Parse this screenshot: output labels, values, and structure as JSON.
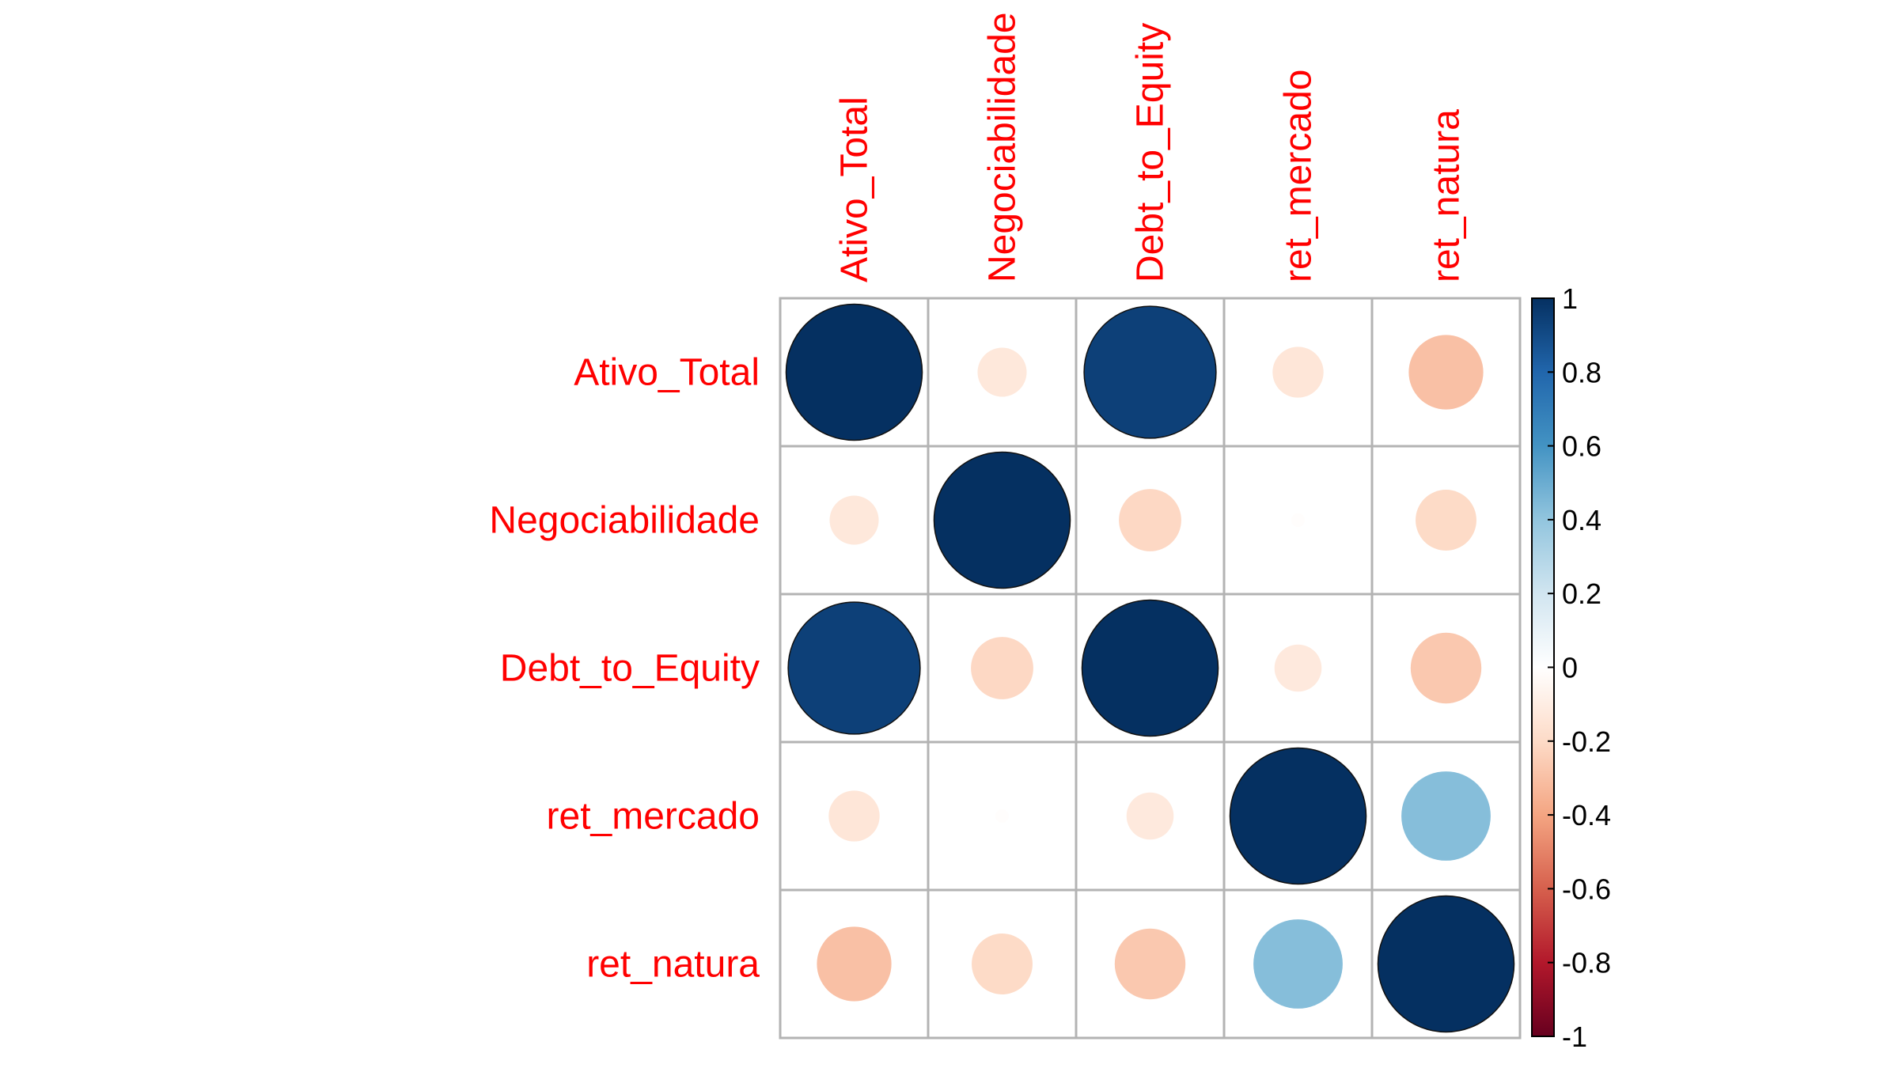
{
  "chart_data": {
    "type": "heatmap",
    "method": "circle",
    "variables": [
      "Ativo_Total",
      "Negociabilidade",
      "Debt_to_Equity",
      "ret_mercado",
      "ret_natura"
    ],
    "matrix": [
      [
        1.0,
        -0.13,
        0.94,
        -0.14,
        -0.3
      ],
      [
        -0.13,
        1.0,
        -0.21,
        -0.01,
        -0.2
      ],
      [
        0.94,
        -0.21,
        1.0,
        -0.12,
        -0.27
      ],
      [
        -0.14,
        -0.01,
        -0.12,
        1.0,
        0.43
      ],
      [
        -0.3,
        -0.2,
        -0.27,
        0.43,
        1.0
      ]
    ],
    "label_color": "#ff0000",
    "colorbar": {
      "ticks": [
        "1",
        "0.8",
        "0.6",
        "0.4",
        "0.2",
        "0",
        "-0.2",
        "-0.4",
        "-0.6",
        "-0.8",
        "-1"
      ],
      "range": [
        -1,
        1
      ],
      "colors": [
        "#67001f",
        "#b2182b",
        "#d6604d",
        "#f4a582",
        "#fddbc7",
        "#ffffff",
        "#d1e5f0",
        "#92c5de",
        "#4393c3",
        "#2166ac",
        "#053061"
      ]
    }
  }
}
